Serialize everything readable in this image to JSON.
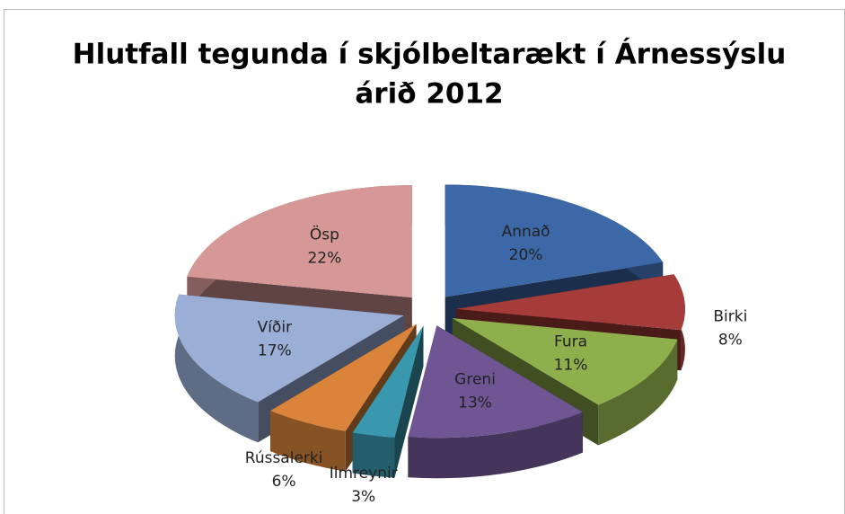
{
  "chart_data": {
    "type": "pie",
    "title": [
      "Hlutfall tegunda í skjólbeltarækt í Árnessýslu",
      "árið 2012"
    ],
    "categories": [
      "Annað",
      "Birki",
      "Fura",
      "Greni",
      "Ilmreynir",
      "Rússalerki",
      "Víðir",
      "Ösp"
    ],
    "values": [
      20,
      8,
      11,
      13,
      3,
      6,
      17,
      22
    ],
    "value_labels": [
      "20%",
      "8%",
      "11%",
      "13%",
      "3%",
      "6%",
      "17%",
      "22%"
    ],
    "colors": [
      "#3d68a8",
      "#a63c3a",
      "#8fae4c",
      "#6f5593",
      "#3a98ae",
      "#d9843a",
      "#9aaed6",
      "#d69897"
    ]
  }
}
